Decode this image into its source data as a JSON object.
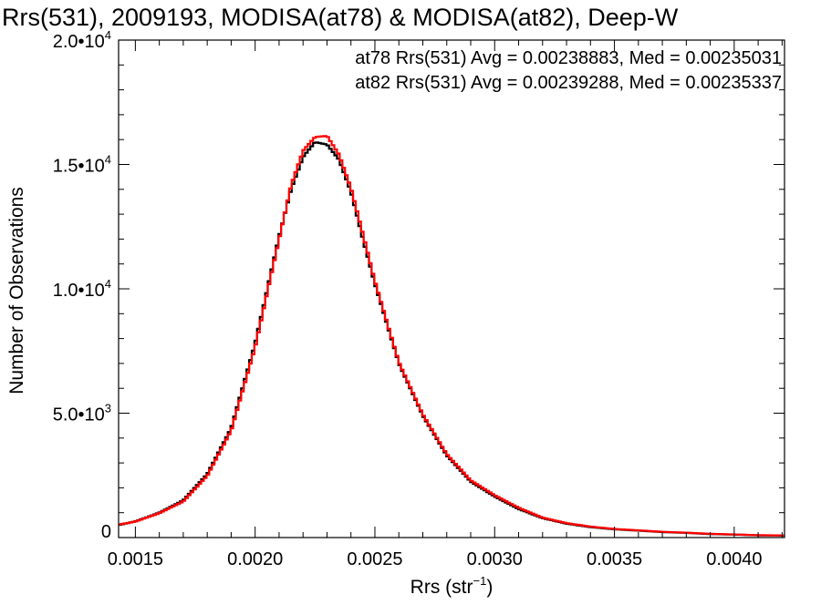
{
  "chart_data": {
    "type": "line",
    "title": "Rrs(531), 2009193, MODISA(at78) & MODISA(at82), Deep-W",
    "xlabel": "Rrs (str",
    "xlabel_sup": "−1",
    "xlabel_suffix": ")",
    "ylabel": "Number of Observations",
    "xlim": [
      0.00143,
      0.00421
    ],
    "ylim": [
      0,
      20000
    ],
    "x_ticks": [
      {
        "value": 0.0015,
        "label": "0.0015"
      },
      {
        "value": 0.002,
        "label": "0.0020"
      },
      {
        "value": 0.0025,
        "label": "0.0025"
      },
      {
        "value": 0.003,
        "label": "0.0030"
      },
      {
        "value": 0.0035,
        "label": "0.0035"
      },
      {
        "value": 0.004,
        "label": "0.0040"
      }
    ],
    "y_ticks": [
      {
        "value": 0,
        "mantissa": "0",
        "exponent": ""
      },
      {
        "value": 5000,
        "mantissa": "5.0•10",
        "exponent": "3"
      },
      {
        "value": 10000,
        "mantissa": "1.0•10",
        "exponent": "4"
      },
      {
        "value": 15000,
        "mantissa": "1.5•10",
        "exponent": "4"
      },
      {
        "value": 20000,
        "mantissa": "2.0•10",
        "exponent": "4"
      }
    ],
    "x": [
      0.00143,
      0.0015,
      0.0016,
      0.0017,
      0.0018,
      0.0019,
      0.002,
      0.0021,
      0.00215,
      0.0022,
      0.00225,
      0.0023,
      0.00235,
      0.0024,
      0.00245,
      0.0025,
      0.0026,
      0.0027,
      0.0028,
      0.0029,
      0.003,
      0.0031,
      0.0032,
      0.0033,
      0.0034,
      0.0035,
      0.0036,
      0.0037,
      0.0038,
      0.0039,
      0.004,
      0.0041,
      0.00421
    ],
    "series": [
      {
        "name": "at78",
        "color": "#000000",
        "values": [
          500,
          650,
          1000,
          1500,
          2550,
          4400,
          7800,
          12100,
          14000,
          15300,
          15900,
          15800,
          15200,
          13900,
          12000,
          10200,
          7000,
          4900,
          3300,
          2250,
          1650,
          1150,
          780,
          560,
          420,
          330,
          280,
          220,
          190,
          140,
          120,
          90,
          80
        ]
      },
      {
        "name": "at82",
        "color": "#ff0000",
        "values": [
          520,
          640,
          980,
          1450,
          2480,
          4300,
          7650,
          12000,
          14150,
          15550,
          16100,
          16150,
          15400,
          14050,
          12200,
          10300,
          7050,
          4950,
          3350,
          2300,
          1700,
          1200,
          800,
          580,
          440,
          345,
          290,
          230,
          195,
          150,
          125,
          95,
          85
        ]
      }
    ],
    "annotations": [
      {
        "text": "at78 Rrs(531) Avg = 0.00238883, Med = 0.00235031",
        "color": "#000000"
      },
      {
        "text": "at82 Rrs(531) Avg = 0.00239288, Med = 0.00235337",
        "color": "#ff0000"
      }
    ],
    "grid": false
  }
}
